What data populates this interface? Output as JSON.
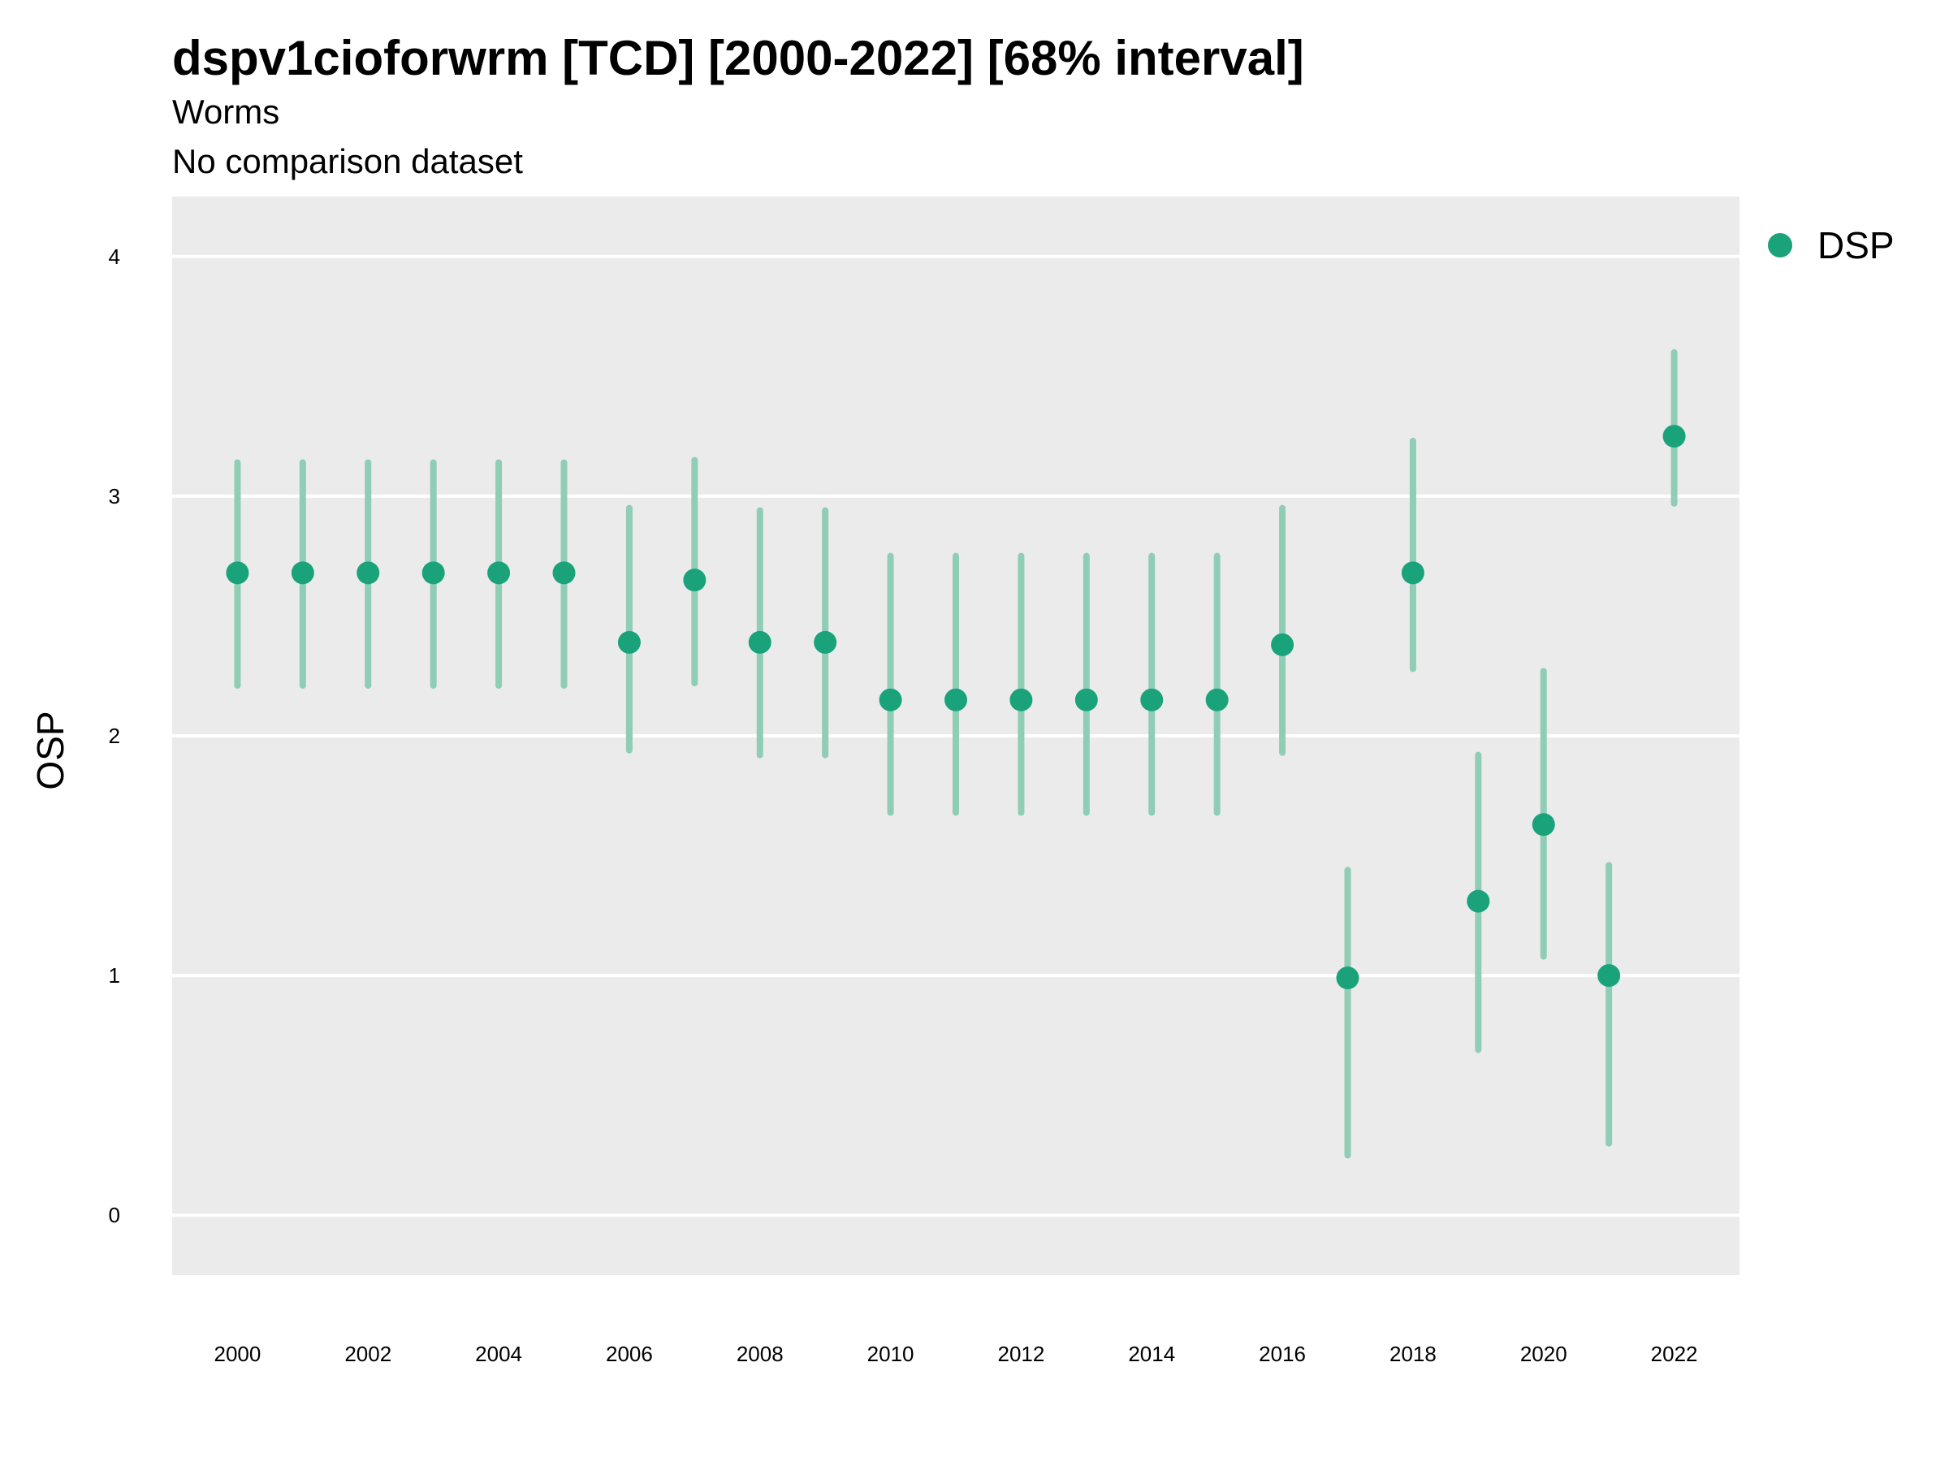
{
  "chart_data": {
    "type": "scatter",
    "title": "dspv1cioforwrm [TCD] [2000-2022] [68% interval]",
    "subtitle_lines": [
      "Worms",
      "No comparison dataset"
    ],
    "xlabel": "",
    "ylabel": "OSP",
    "ylim": [
      -0.25,
      4.25
    ],
    "xlim": [
      1999,
      2023
    ],
    "y_ticks": [
      0,
      1,
      2,
      3,
      4
    ],
    "x_ticks": [
      2000,
      2002,
      2004,
      2006,
      2008,
      2010,
      2012,
      2014,
      2016,
      2018,
      2020,
      2022
    ],
    "grid": true,
    "legend_position": "right",
    "colors": {
      "series": "#1aa37a",
      "errorbar": "#8fcdb6",
      "panel": "#ebebeb",
      "grid": "#ffffff"
    },
    "series": [
      {
        "name": "DSP",
        "points": [
          {
            "x": 2000,
            "y": 2.68,
            "lo": 2.21,
            "hi": 3.14
          },
          {
            "x": 2001,
            "y": 2.68,
            "lo": 2.21,
            "hi": 3.14
          },
          {
            "x": 2002,
            "y": 2.68,
            "lo": 2.21,
            "hi": 3.14
          },
          {
            "x": 2003,
            "y": 2.68,
            "lo": 2.21,
            "hi": 3.14
          },
          {
            "x": 2004,
            "y": 2.68,
            "lo": 2.21,
            "hi": 3.14
          },
          {
            "x": 2005,
            "y": 2.68,
            "lo": 2.21,
            "hi": 3.14
          },
          {
            "x": 2006,
            "y": 2.39,
            "lo": 1.94,
            "hi": 2.95
          },
          {
            "x": 2007,
            "y": 2.65,
            "lo": 2.22,
            "hi": 3.15
          },
          {
            "x": 2008,
            "y": 2.39,
            "lo": 1.92,
            "hi": 2.94
          },
          {
            "x": 2009,
            "y": 2.39,
            "lo": 1.92,
            "hi": 2.94
          },
          {
            "x": 2010,
            "y": 2.15,
            "lo": 1.68,
            "hi": 2.75
          },
          {
            "x": 2011,
            "y": 2.15,
            "lo": 1.68,
            "hi": 2.75
          },
          {
            "x": 2012,
            "y": 2.15,
            "lo": 1.68,
            "hi": 2.75
          },
          {
            "x": 2013,
            "y": 2.15,
            "lo": 1.68,
            "hi": 2.75
          },
          {
            "x": 2014,
            "y": 2.15,
            "lo": 1.68,
            "hi": 2.75
          },
          {
            "x": 2015,
            "y": 2.15,
            "lo": 1.68,
            "hi": 2.75
          },
          {
            "x": 2016,
            "y": 2.38,
            "lo": 1.93,
            "hi": 2.95
          },
          {
            "x": 2017,
            "y": 0.99,
            "lo": 0.25,
            "hi": 1.44
          },
          {
            "x": 2018,
            "y": 2.68,
            "lo": 2.28,
            "hi": 3.23
          },
          {
            "x": 2019,
            "y": 1.31,
            "lo": 0.69,
            "hi": 1.92
          },
          {
            "x": 2020,
            "y": 1.63,
            "lo": 1.08,
            "hi": 2.27
          },
          {
            "x": 2021,
            "y": 1.0,
            "lo": 0.3,
            "hi": 1.46
          },
          {
            "x": 2022,
            "y": 3.25,
            "lo": 2.97,
            "hi": 3.6
          }
        ]
      }
    ]
  }
}
